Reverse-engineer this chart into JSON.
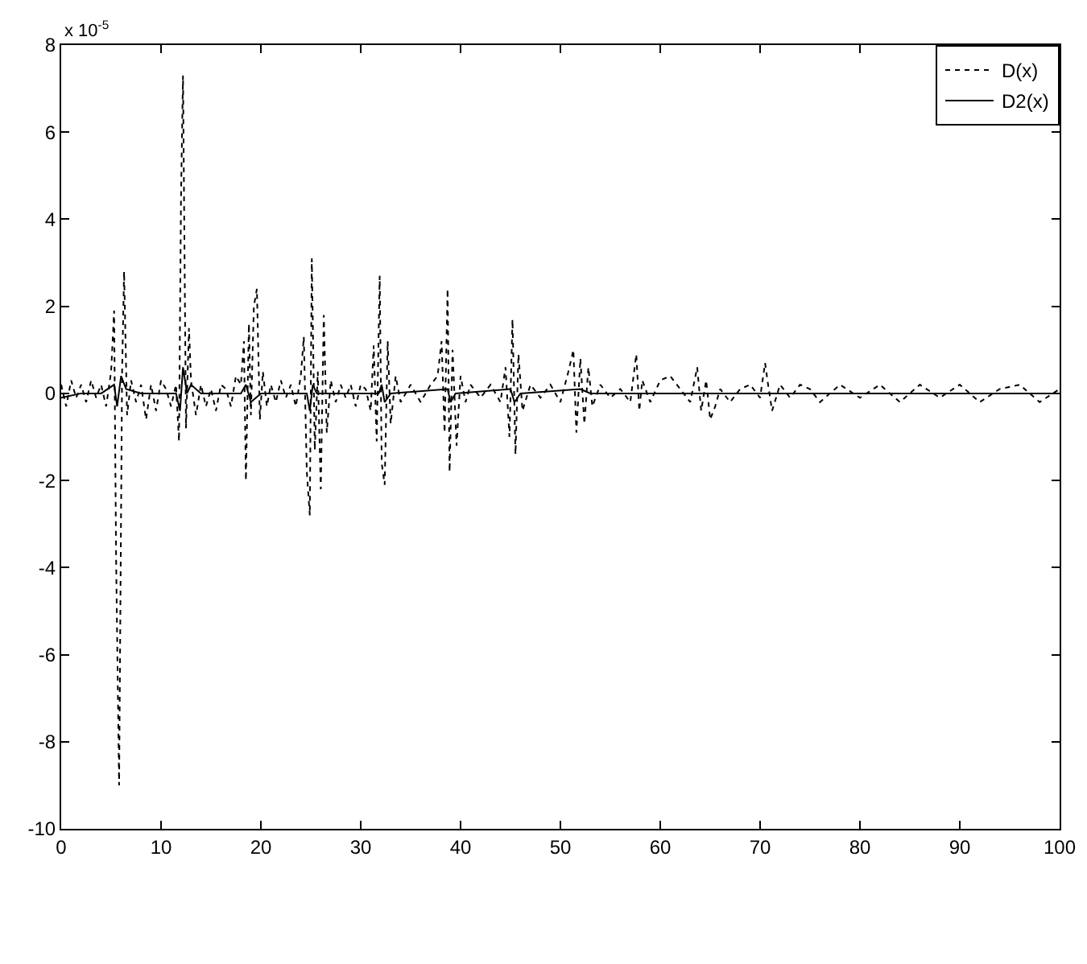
{
  "chart_data": {
    "type": "line",
    "annotations": [
      "x 10$^{-5}$"
    ],
    "xlim": [
      0,
      100
    ],
    "xticks": [
      0,
      10,
      20,
      30,
      40,
      50,
      60,
      70,
      80,
      90,
      100
    ],
    "ylim": [
      -10,
      8
    ],
    "yticks": [
      -10,
      -8,
      -6,
      -4,
      -2,
      0,
      2,
      4,
      6,
      8
    ],
    "grid": false,
    "legend": "top right",
    "series": [
      {
        "name": "D(x)",
        "color": "#000000",
        "line_style": "dotted",
        "x": [
          0,
          0.5,
          1,
          1.5,
          2,
          2.5,
          3,
          3.5,
          4,
          4.5,
          5,
          5.3,
          5.5,
          5.8,
          6.1,
          6.3,
          6.6,
          7,
          7.5,
          8,
          8.5,
          9,
          9.5,
          10,
          10.5,
          11,
          11.5,
          11.8,
          12,
          12.2,
          12.5,
          12.8,
          13,
          13.5,
          14,
          14.5,
          15,
          15.5,
          16,
          16.5,
          17,
          17.5,
          18,
          18.3,
          18.5,
          18.8,
          19,
          19.3,
          19.6,
          19.9,
          20.2,
          20.6,
          21,
          21.5,
          22,
          22.5,
          23,
          23.5,
          24,
          24.3,
          24.6,
          24.9,
          25.1,
          25.4,
          25.7,
          26,
          26.3,
          26.6,
          27,
          27.5,
          28,
          28.5,
          29,
          29.5,
          30,
          30.5,
          31,
          31.3,
          31.6,
          31.9,
          32.1,
          32.4,
          32.7,
          33,
          33.5,
          34,
          35,
          36,
          37,
          37.7,
          38.1,
          38.4,
          38.7,
          38.9,
          39.2,
          39.6,
          40,
          40.5,
          41,
          42,
          43,
          44,
          44.5,
          44.9,
          45.2,
          45.5,
          45.8,
          46.2,
          47,
          48,
          49,
          50,
          50.8,
          51.3,
          51.6,
          52,
          52.4,
          52.8,
          53.2,
          54,
          55,
          56,
          57,
          57.6,
          57.9,
          58.2,
          59,
          60,
          61,
          62,
          63,
          63.7,
          64.1,
          64.6,
          65,
          65.5,
          66,
          67,
          68,
          69,
          70,
          70.5,
          70.8,
          71.2,
          72,
          73,
          74,
          75,
          76,
          78,
          80,
          82,
          84,
          86,
          88,
          90,
          92,
          94,
          96,
          98,
          100
        ],
        "values": [
          0.2,
          -0.3,
          0.3,
          -0.1,
          0.2,
          -0.2,
          0.3,
          -0.1,
          0.2,
          -0.3,
          0.5,
          1.9,
          -3.8,
          -9,
          0.5,
          2.8,
          -0.5,
          0.3,
          -0.2,
          0.2,
          -0.6,
          0.2,
          -0.4,
          0.3,
          0.1,
          -0.3,
          0.2,
          -1.1,
          4.5,
          7.3,
          -0.8,
          1.5,
          0.3,
          -0.5,
          0.2,
          -0.3,
          0.1,
          -0.4,
          0.2,
          0.1,
          -0.3,
          0.4,
          0.2,
          1.2,
          -2.0,
          1.6,
          -0.5,
          2.0,
          2.4,
          -0.6,
          0.5,
          -0.3,
          0.2,
          -0.2,
          0.3,
          -0.1,
          0.2,
          -0.3,
          0.4,
          1.3,
          -1.8,
          -2.8,
          3.1,
          -1.3,
          0.5,
          -2.2,
          1.8,
          -0.9,
          0.3,
          -0.2,
          0.2,
          -0.1,
          0.2,
          -0.3,
          0.2,
          0.1,
          -0.4,
          1.1,
          -1.1,
          2.7,
          -1.6,
          -2.1,
          1.2,
          -0.7,
          0.4,
          -0.2,
          0.2,
          -0.2,
          0.2,
          0.4,
          1.2,
          -0.9,
          2.4,
          -1.8,
          1.0,
          -1.2,
          0.4,
          -0.2,
          0.2,
          -0.1,
          0.2,
          -0.2,
          0.6,
          -1.0,
          1.7,
          -1.4,
          0.9,
          -0.4,
          0.2,
          -0.1,
          0.2,
          -0.2,
          0.5,
          1.0,
          -0.9,
          0.8,
          -0.7,
          0.6,
          -0.3,
          0.2,
          -0.1,
          0.1,
          -0.2,
          0.9,
          -0.4,
          0.3,
          -0.2,
          0.3,
          0.4,
          0.1,
          -0.2,
          0.6,
          -0.4,
          0.3,
          -0.6,
          -0.3,
          0.1,
          -0.2,
          0.1,
          0.2,
          -0.1,
          0.7,
          0.2,
          -0.4,
          0.2,
          -0.1,
          0.2,
          0.1,
          -0.2,
          0.2,
          -0.1,
          0.2,
          -0.2,
          0.2,
          -0.1,
          0.2,
          -0.2,
          0.1,
          0.2,
          -0.2,
          0.1
        ]
      },
      {
        "name": "D2(x)",
        "color": "#000000",
        "line_style": "solid",
        "x": [
          0,
          2,
          4,
          5.3,
          5.6,
          6,
          6.5,
          8,
          11.5,
          11.9,
          12.2,
          12.6,
          13,
          14,
          18,
          18.5,
          19,
          20,
          24.6,
          24.9,
          25.2,
          25.6,
          31.8,
          32.1,
          32.4,
          33,
          38.7,
          39,
          39.5,
          45,
          45.4,
          46,
          52,
          53,
          100
        ],
        "values": [
          -0.1,
          0,
          0,
          0.2,
          -0.3,
          0.4,
          0.1,
          0,
          0,
          -0.4,
          0.6,
          0,
          0.2,
          0,
          0,
          0.2,
          -0.2,
          0,
          0,
          -0.4,
          0.2,
          0,
          0,
          0.2,
          -0.2,
          0,
          0.1,
          -0.2,
          0,
          0.1,
          -0.2,
          0,
          0.1,
          0,
          0
        ]
      }
    ]
  }
}
